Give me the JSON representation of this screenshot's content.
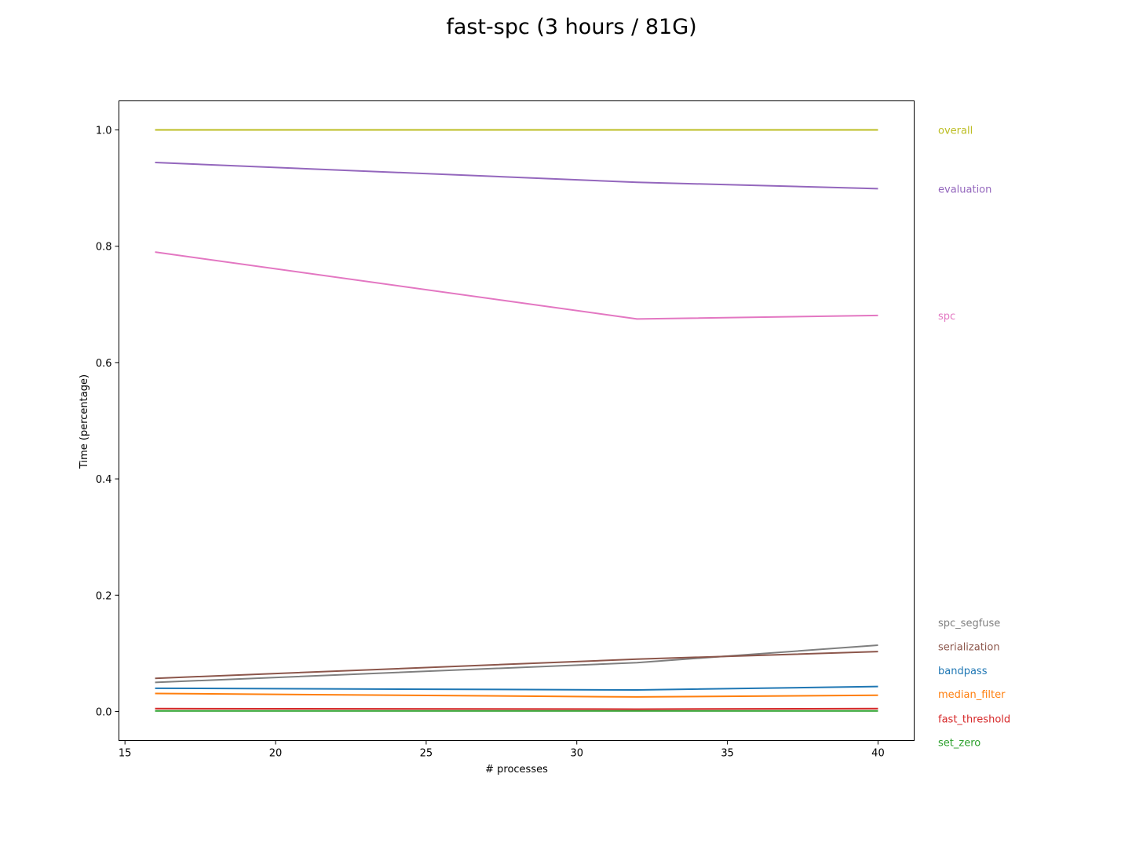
{
  "chart_data": {
    "type": "line",
    "title": "fast-spc (3 hours / 81G)",
    "xlabel": "# processes",
    "ylabel": "Time (percentage)",
    "xlim": [
      14.8,
      41.2
    ],
    "ylim": [
      -0.05,
      1.05
    ],
    "xticks": [
      15,
      20,
      25,
      30,
      35,
      40
    ],
    "yticks": [
      0.0,
      0.2,
      0.4,
      0.6,
      0.8,
      1.0
    ],
    "x": [
      16,
      32,
      40
    ],
    "grid": false,
    "legend": "right (labels beside each series)",
    "series": [
      {
        "name": "overall",
        "color": "#bcbd22",
        "values": [
          1.0,
          1.0,
          1.0
        ],
        "label_value": 1.0
      },
      {
        "name": "evaluation",
        "color": "#9467bd",
        "values": [
          0.944,
          0.91,
          0.899
        ],
        "label_value": 0.899
      },
      {
        "name": "spc",
        "color": "#e377c2",
        "values": [
          0.79,
          0.675,
          0.681
        ],
        "label_value": 0.681
      },
      {
        "name": "spc_segfuse",
        "color": "#7f7f7f",
        "values": [
          0.05,
          0.084,
          0.114
        ],
        "label_value": 0.153
      },
      {
        "name": "serialization",
        "color": "#8c564b",
        "values": [
          0.057,
          0.09,
          0.103
        ],
        "label_value": 0.112
      },
      {
        "name": "bandpass",
        "color": "#1f77b4",
        "values": [
          0.04,
          0.037,
          0.043
        ],
        "label_value": 0.071
      },
      {
        "name": "median_filter",
        "color": "#ff7f0e",
        "values": [
          0.031,
          0.025,
          0.028
        ],
        "label_value": 0.03
      },
      {
        "name": "fast_threshold",
        "color": "#d62728",
        "values": [
          0.005,
          0.004,
          0.005
        ],
        "label_value": -0.012
      },
      {
        "name": "set_zero",
        "color": "#2ca02c",
        "values": [
          0.001,
          0.001,
          0.001
        ],
        "label_value": -0.053
      }
    ]
  }
}
